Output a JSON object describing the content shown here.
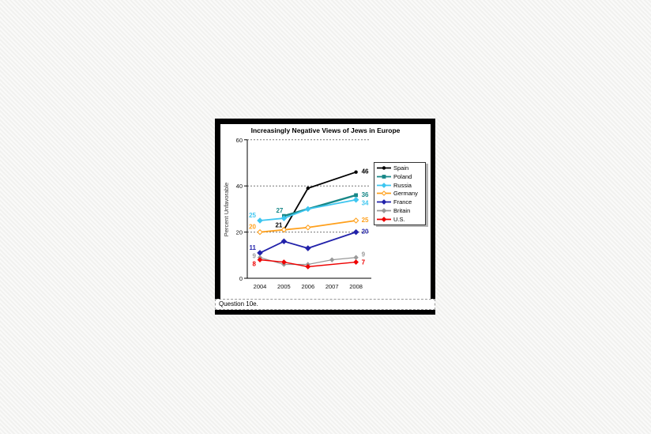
{
  "window": {
    "question_text": "Question 10e."
  },
  "chart_data": {
    "type": "line",
    "title": "Increasingly Negative Views of Jews in Europe",
    "xlabel": "",
    "ylabel": "Percent Unfavorable",
    "x": [
      2004,
      2005,
      2006,
      2007,
      2008
    ],
    "ylim": [
      0,
      60
    ],
    "yticks": [
      0,
      20,
      40,
      60
    ],
    "grid": "horizontal dashed lines at 20, 40, 60",
    "legend_position": "right",
    "series": [
      {
        "name": "Spain",
        "color": "#000000",
        "marker": "circle",
        "width": 1.8,
        "msize": 3,
        "values": [
          null,
          21,
          39,
          null,
          46
        ],
        "start_label": "21",
        "end_label": "46",
        "start_offset": [
          -2,
          -3
        ],
        "end_offset": [
          7,
          2
        ]
      },
      {
        "name": "Poland",
        "color": "#178787",
        "marker": "square",
        "width": 2.4,
        "msize": 3,
        "values": [
          null,
          27,
          null,
          null,
          36
        ],
        "start_label": "27",
        "end_label": "36",
        "start_offset": [
          -1,
          -4
        ],
        "end_offset": [
          7,
          2
        ]
      },
      {
        "name": "Russia",
        "color": "#3EC6F0",
        "marker": "diamond",
        "width": 1.8,
        "msize": 3,
        "values": [
          25,
          26,
          30,
          null,
          34
        ],
        "start_label": "25",
        "end_label": "34",
        "start_offset": [
          -5,
          -4
        ],
        "end_offset": [
          7,
          7
        ]
      },
      {
        "name": "Germany",
        "color": "#FFA01C",
        "marker": "open-diamond",
        "width": 1.8,
        "msize": 3,
        "values": [
          20,
          21,
          22,
          null,
          25
        ],
        "start_label": "20",
        "end_label": "25",
        "start_offset": [
          -5,
          -4
        ],
        "end_offset": [
          7,
          2
        ]
      },
      {
        "name": "France",
        "color": "#2222AA",
        "marker": "diamond",
        "width": 1.8,
        "msize": 3,
        "values": [
          11,
          16,
          13,
          null,
          20
        ],
        "start_label": "11",
        "end_label": "20",
        "start_offset": [
          -5,
          -4
        ],
        "end_offset": [
          7,
          2
        ]
      },
      {
        "name": "Britain",
        "color": "#999999",
        "marker": "diamond",
        "width": 1.3,
        "msize": 2.4,
        "values": [
          9,
          6,
          6,
          8,
          9
        ],
        "start_label": "9",
        "end_label": "9",
        "start_offset": [
          -5,
          1
        ],
        "end_offset": [
          7,
          -1
        ]
      },
      {
        "name": "U.S.",
        "color": "#EE0000",
        "marker": "diamond",
        "width": 1.5,
        "msize": 2.6,
        "values": [
          8,
          7,
          5,
          null,
          7
        ],
        "start_label": "8",
        "end_label": "7",
        "start_offset": [
          -5,
          8
        ],
        "end_offset": [
          7,
          3
        ]
      }
    ]
  }
}
